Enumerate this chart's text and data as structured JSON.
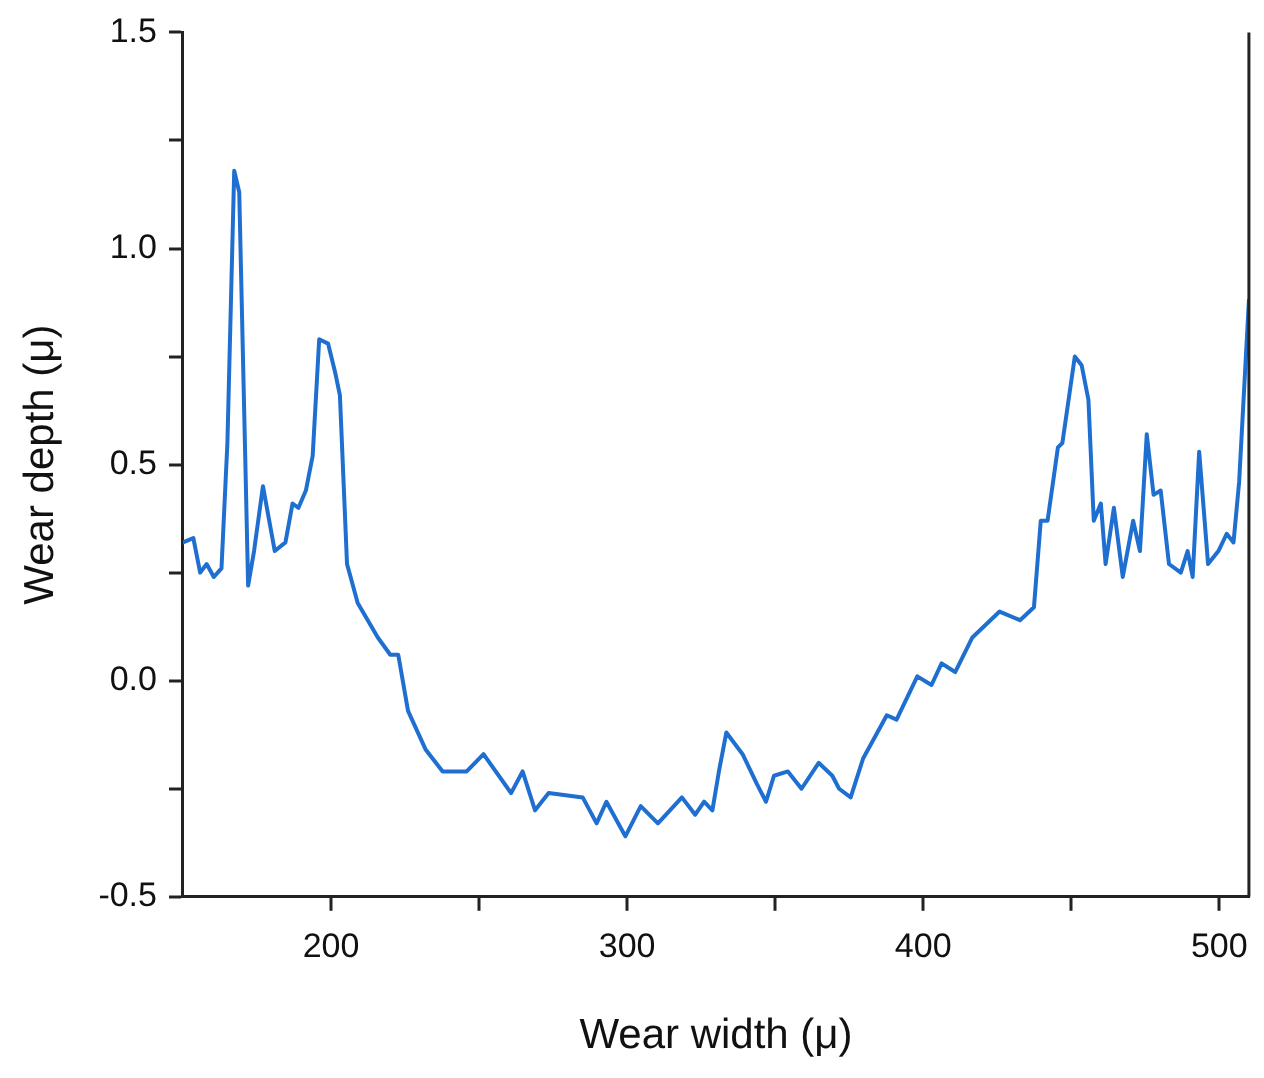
{
  "chart_data": {
    "type": "line",
    "xlabel": "Wear width (μ)",
    "ylabel": "Wear depth (μ)",
    "xlim": [
      150,
      510
    ],
    "ylim": [
      -0.5,
      1.5
    ],
    "xticks": [
      200,
      {
        "value": 250,
        "label": null
      },
      300,
      {
        "value": 350,
        "label": null
      },
      400,
      {
        "value": 450,
        "label": null
      },
      500
    ],
    "yticks": [
      -0.5,
      {
        "value": -0.25,
        "label": null
      },
      {
        "value": 0,
        "label": "0.0"
      },
      {
        "value": 0.25,
        "label": null
      },
      0.5,
      {
        "value": 0.75,
        "label": null
      },
      {
        "value": 1,
        "label": "1.0"
      },
      {
        "value": 1.25,
        "label": null
      },
      1.5
    ],
    "grid": false,
    "legend": false,
    "marker": "none",
    "line_style": "solid",
    "series": [
      {
        "color": "#1f6fd0",
        "x": [
          150,
          153.5,
          155.8,
          158,
          160.4,
          163,
          165,
          167.3,
          169,
          172,
          174,
          177,
          181,
          184.6,
          187,
          189,
          191.5,
          193.8,
          196,
          199,
          201.5,
          203,
          205.4,
          209,
          215.8,
          220,
          222.7,
          226,
          232,
          237.7,
          245.8,
          251.5,
          260.8,
          264.7,
          268.9,
          273.5,
          285,
          289.7,
          293,
          299.4,
          304.6,
          310.4,
          318.5,
          323,
          326,
          328.8,
          331,
          333.5,
          339,
          343.9,
          346.9,
          349.6,
          354.3,
          358.9,
          364.7,
          369.3,
          371.6,
          375.5,
          379.7,
          387.7,
          391,
          398,
          402.8,
          406.2,
          410.8,
          416.6,
          425.8,
          432.7,
          437.4,
          439.7,
          442,
          445.5,
          447,
          451.2,
          453.5,
          455.8,
          457.6,
          460,
          461.6,
          464.4,
          467.4,
          470.9,
          473.2,
          475.5,
          477.8,
          480.2,
          483,
          487,
          489.3,
          491,
          493.2,
          496.2,
          499.7,
          502.5,
          504.8,
          506.7,
          510
        ],
        "values": [
          0.32,
          0.33,
          0.25,
          0.27,
          0.24,
          0.26,
          0.55,
          1.18,
          1.13,
          0.22,
          0.3,
          0.45,
          0.3,
          0.32,
          0.41,
          0.4,
          0.44,
          0.52,
          0.79,
          0.78,
          0.71,
          0.66,
          0.27,
          0.18,
          0.1,
          0.06,
          0.06,
          -0.07,
          -0.16,
          -0.21,
          -0.21,
          -0.17,
          -0.26,
          -0.21,
          -0.3,
          -0.26,
          -0.27,
          -0.33,
          -0.28,
          -0.36,
          -0.29,
          -0.33,
          -0.27,
          -0.31,
          -0.28,
          -0.3,
          -0.21,
          -0.12,
          -0.17,
          -0.24,
          -0.28,
          -0.22,
          -0.21,
          -0.25,
          -0.19,
          -0.22,
          -0.25,
          -0.27,
          -0.18,
          -0.08,
          -0.09,
          0.01,
          -0.01,
          0.04,
          0.02,
          0.1,
          0.16,
          0.14,
          0.17,
          0.37,
          0.37,
          0.54,
          0.55,
          0.75,
          0.73,
          0.65,
          0.37,
          0.41,
          0.27,
          0.4,
          0.24,
          0.37,
          0.3,
          0.57,
          0.43,
          0.44,
          0.27,
          0.25,
          0.3,
          0.24,
          0.53,
          0.27,
          0.3,
          0.34,
          0.32,
          0.46,
          0.88
        ]
      }
    ]
  }
}
